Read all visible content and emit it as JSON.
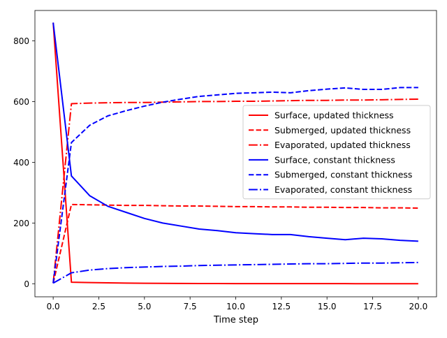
{
  "chart_data": {
    "type": "line",
    "title": "",
    "xlabel": "Time step",
    "ylabel": "",
    "xlim": [
      -1.0,
      21.0
    ],
    "ylim": [
      -43,
      900
    ],
    "xticks": [
      0.0,
      2.5,
      5.0,
      7.5,
      10.0,
      12.5,
      15.0,
      17.5,
      20.0
    ],
    "xtick_labels": [
      "0.0",
      "2.5",
      "5.0",
      "7.5",
      "10.0",
      "12.5",
      "15.0",
      "17.5",
      "20.0"
    ],
    "yticks": [
      0,
      200,
      400,
      600,
      800
    ],
    "ytick_labels": [
      "0",
      "200",
      "400",
      "600",
      "800"
    ],
    "grid": false,
    "legend_position": "center-right",
    "x": [
      0,
      1,
      2,
      3,
      4,
      5,
      6,
      7,
      8,
      9,
      10,
      11,
      12,
      13,
      14,
      15,
      16,
      17,
      18,
      19,
      20
    ],
    "series": [
      {
        "name": "Surface, updated thickness",
        "color": "#ff0000",
        "dash": "solid",
        "values": [
          860,
          5,
          4,
          3,
          2,
          1.5,
          1.2,
          1,
          0.8,
          0.6,
          0.5,
          0.5,
          0.4,
          0.4,
          0.3,
          0.3,
          0.3,
          0.2,
          0.2,
          0.2,
          0.2
        ]
      },
      {
        "name": "Submerged, updated thickness",
        "color": "#ff0000",
        "dash": "dashed",
        "values": [
          2,
          261,
          260,
          259,
          258,
          258,
          257,
          256,
          256,
          255,
          254,
          254,
          253,
          253,
          252,
          252,
          251,
          251,
          250,
          250,
          249
        ]
      },
      {
        "name": "Evaporated, updated thickness",
        "color": "#ff0000",
        "dash": "dashdot",
        "values": [
          2,
          593,
          595,
          596,
          597,
          597,
          598,
          599,
          600,
          600,
          601,
          601,
          602,
          603,
          604,
          604,
          605,
          605,
          606,
          607,
          608
        ]
      },
      {
        "name": "Surface, constant thickness",
        "color": "#0000ff",
        "dash": "solid",
        "values": [
          860,
          355,
          290,
          255,
          235,
          215,
          200,
          190,
          180,
          175,
          168,
          165,
          162,
          162,
          155,
          150,
          145,
          150,
          148,
          143,
          140
        ]
      },
      {
        "name": "Submerged, constant thickness",
        "color": "#0000ff",
        "dash": "dashed",
        "values": [
          2,
          465,
          522,
          553,
          570,
          585,
          598,
          608,
          617,
          622,
          627,
          629,
          631,
          629,
          636,
          641,
          645,
          640,
          640,
          646,
          646
        ]
      },
      {
        "name": "Evaporated, constant thickness",
        "color": "#0000ff",
        "dash": "dashdot",
        "values": [
          2,
          36,
          45,
          50,
          53,
          55,
          57,
          58,
          60,
          61,
          62,
          63,
          64,
          65,
          66,
          66,
          67,
          68,
          68,
          69,
          70
        ]
      }
    ]
  }
}
